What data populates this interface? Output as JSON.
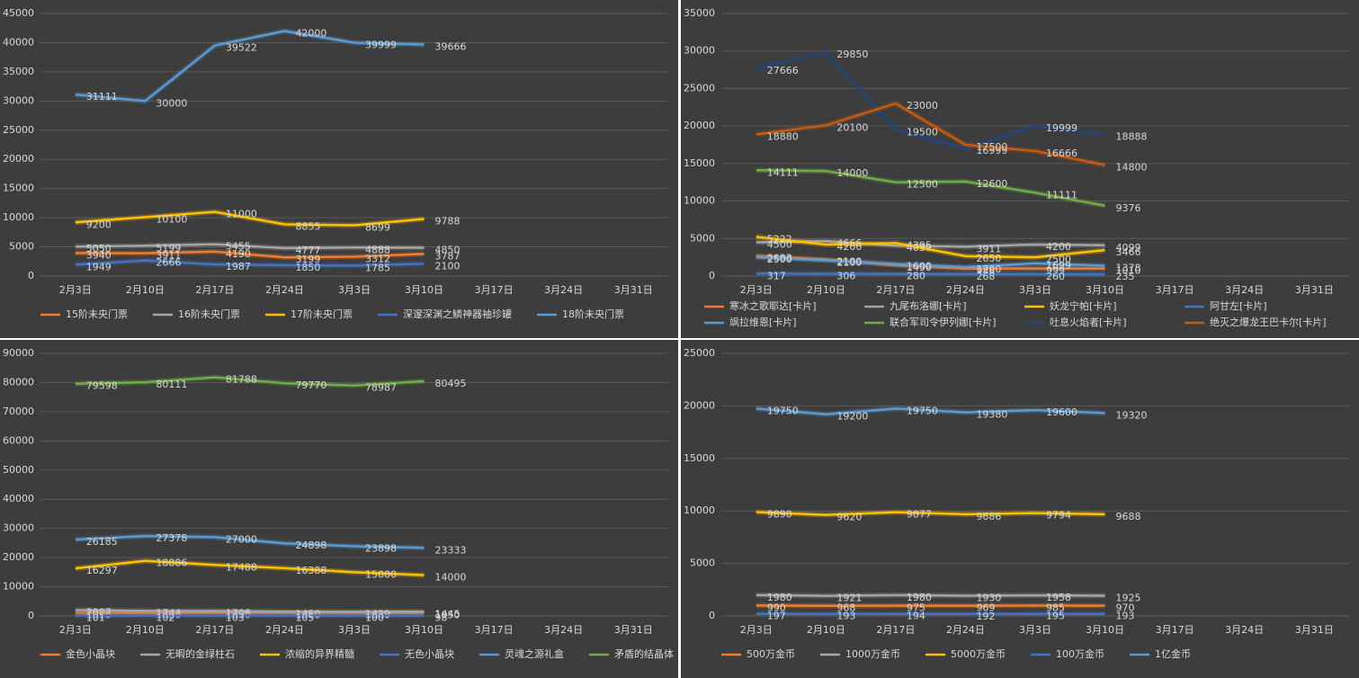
{
  "chart_data": [
    {
      "type": "line",
      "categories": [
        "2月3日",
        "2月10日",
        "2月17日",
        "2月24日",
        "3月3日",
        "3月10日",
        "3月17日",
        "3月24日",
        "3月31日"
      ],
      "ylim": [
        0,
        45000
      ],
      "yticks": [
        0,
        5000,
        10000,
        15000,
        20000,
        25000,
        30000,
        35000,
        40000,
        45000
      ],
      "grid": true,
      "series": [
        {
          "name": "15阶未央门票",
          "color": "#ed7d31",
          "values": [
            3940,
            3911,
            4190,
            3199,
            3312,
            3787,
            null,
            null,
            null
          ]
        },
        {
          "name": "16阶未央门票",
          "color": "#a5a5a5",
          "values": [
            5050,
            5199,
            5455,
            4777,
            4888,
            4850,
            null,
            null,
            null
          ]
        },
        {
          "name": "17阶未央门票",
          "color": "#ffc000",
          "values": [
            9200,
            10100,
            11000,
            8855,
            8699,
            9788,
            null,
            null,
            null
          ]
        },
        {
          "name": "深邃深渊之鳞神器袖珍罐",
          "color": "#4472c4",
          "values": [
            1949,
            2666,
            1987,
            1850,
            1785,
            2100,
            null,
            null,
            null
          ]
        },
        {
          "name": "18阶未央门票",
          "color": "#5b9bd5",
          "values": [
            31111,
            30000,
            39522,
            42000,
            39999,
            39666,
            null,
            null,
            null
          ]
        }
      ]
    },
    {
      "type": "line",
      "categories": [
        "2月3日",
        "2月10日",
        "2月17日",
        "2月24日",
        "3月3日",
        "3月10日",
        "3月17日",
        "3月24日",
        "3月31日"
      ],
      "ylim": [
        0,
        35000
      ],
      "yticks": [
        0,
        5000,
        10000,
        15000,
        20000,
        25000,
        30000,
        35000
      ],
      "grid": true,
      "series": [
        {
          "name": "寒冰之歌耶达[卡片]",
          "color": "#ed7d31",
          "values": [
            2683,
            2199,
            1450,
            988,
            999,
            1010,
            null,
            null,
            null
          ]
        },
        {
          "name": "九尾布洛娜[卡片]",
          "color": "#a5a5a5",
          "values": [
            4500,
            4666,
            4050,
            3911,
            4200,
            4099,
            null,
            null,
            null
          ]
        },
        {
          "name": "妖龙宁帕[卡片]",
          "color": "#ffc000",
          "values": [
            5222,
            4200,
            4395,
            2650,
            2500,
            3466,
            null,
            null,
            null
          ]
        },
        {
          "name": "阿甘左[卡片]",
          "color": "#4472c4",
          "values": [
            317,
            306,
            280,
            268,
            260,
            235,
            null,
            null,
            null
          ]
        },
        {
          "name": "飒拉维恩[卡片]",
          "color": "#5b9bd5",
          "values": [
            2500,
            2100,
            1600,
            1200,
            1699,
            1378,
            null,
            null,
            null
          ]
        },
        {
          "name": "联合军司令伊列娜[卡片]",
          "color": "#70ad47",
          "values": [
            14111,
            14000,
            12500,
            12600,
            11111,
            9376,
            null,
            null,
            null
          ]
        },
        {
          "name": "吐息火焰者[卡片]",
          "color": "#264478",
          "values": [
            27666,
            29850,
            19500,
            16999,
            19999,
            18888,
            null,
            null,
            null
          ]
        },
        {
          "name": "绝灭之爆龙王巴卡尔[卡片]",
          "color": "#c55a11",
          "values": [
            18880,
            20100,
            23000,
            17500,
            16666,
            14800,
            null,
            null,
            null
          ]
        }
      ]
    },
    {
      "type": "line",
      "categories": [
        "2月3日",
        "2月10日",
        "2月17日",
        "2月24日",
        "3月3日",
        "3月10日",
        "3月17日",
        "3月24日",
        "3月31日"
      ],
      "ylim": [
        0,
        90000
      ],
      "yticks": [
        0,
        10000,
        20000,
        30000,
        40000,
        50000,
        60000,
        70000,
        80000,
        90000
      ],
      "grid": true,
      "series": [
        {
          "name": "金色小晶块",
          "color": "#ed7d31",
          "values": [
            1010,
            1020,
            1030,
            1060,
            1040,
            1050,
            null,
            null,
            null
          ]
        },
        {
          "name": "无暇的金绿柱石",
          "color": "#a5a5a5",
          "values": [
            2007,
            1744,
            1708,
            1450,
            1429,
            1445,
            null,
            null,
            null
          ]
        },
        {
          "name": "浓缩的异界精髓",
          "color": "#ffc000",
          "values": [
            16297,
            18886,
            17488,
            16388,
            15000,
            14000,
            null,
            null,
            null
          ]
        },
        {
          "name": "无色小晶块",
          "color": "#4472c4",
          "values": [
            101,
            102,
            103,
            105,
            100,
            98,
            null,
            null,
            null
          ]
        },
        {
          "name": "灵魂之源礼盒",
          "color": "#5b9bd5",
          "values": [
            26185,
            27378,
            27000,
            24898,
            23898,
            23333,
            null,
            null,
            null
          ]
        },
        {
          "name": "矛盾的结晶体",
          "color": "#70ad47",
          "values": [
            79598,
            80111,
            81788,
            79770,
            78987,
            80495,
            null,
            null,
            null
          ]
        }
      ]
    },
    {
      "type": "line",
      "categories": [
        "2月3日",
        "2月10日",
        "2月17日",
        "2月24日",
        "3月3日",
        "3月10日",
        "3月17日",
        "3月24日",
        "3月31日"
      ],
      "ylim": [
        0,
        25000
      ],
      "yticks": [
        0,
        5000,
        10000,
        15000,
        20000,
        25000
      ],
      "grid": true,
      "series": [
        {
          "name": "500万金币",
          "color": "#ed7d31",
          "values": [
            990,
            968,
            975,
            969,
            985,
            970,
            null,
            null,
            null
          ]
        },
        {
          "name": "1000万金币",
          "color": "#a5a5a5",
          "values": [
            1980,
            1921,
            1980,
            1930,
            1958,
            1925,
            null,
            null,
            null
          ]
        },
        {
          "name": "5000万金币",
          "color": "#ffc000",
          "values": [
            9890,
            9620,
            9877,
            9686,
            9794,
            9688,
            null,
            null,
            null
          ]
        },
        {
          "name": "100万金币",
          "color": "#4472c4",
          "values": [
            197,
            193,
            194,
            192,
            195,
            193,
            null,
            null,
            null
          ]
        },
        {
          "name": "1亿金币",
          "color": "#5b9bd5",
          "values": [
            19750,
            19200,
            19750,
            19380,
            19600,
            19320,
            null,
            null,
            null
          ]
        }
      ]
    }
  ]
}
